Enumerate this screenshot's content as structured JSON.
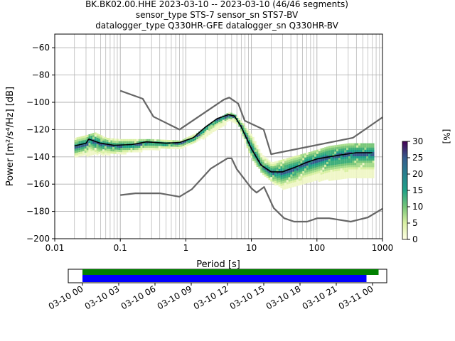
{
  "header": {
    "line1": "BK.BK02.00.HHE   2023-03-10 -- 2023-03-10  (46/46 segments)",
    "line2": "sensor_type STS-7 sensor_sn STS7-BV",
    "line3": "datalogger_type Q330HR-GFE datalogger_sn Q330HR-BV"
  },
  "colors": {
    "nlnm_nhnm": "#666666",
    "mean_curve": "#000000",
    "grid": "#b0b0b0",
    "data_coverage_bar": "#0000ff",
    "gap_coverage_bar": "#008000"
  },
  "chart_data": [
    {
      "type": "heatmap",
      "title": "",
      "xlabel": "Period [s]",
      "ylabel": "Power [m²/s⁴/Hz] [dB]",
      "xscale": "log",
      "xlim": [
        0.01,
        1000
      ],
      "ylim": [
        -200,
        -50
      ],
      "x_ticks": [
        "0.01",
        "0.1",
        "1",
        "10",
        "100",
        "1000"
      ],
      "y_ticks": [
        "−200",
        "−180",
        "−160",
        "−140",
        "−120",
        "−100",
        "−80",
        "−60"
      ],
      "x_tick_values": [
        0.01,
        0.1,
        1,
        10,
        100,
        1000
      ],
      "y_tick_values": [
        -200,
        -180,
        -160,
        -140,
        -120,
        -100,
        -80,
        -60
      ],
      "grid": true,
      "colorbar": {
        "label": "[%]",
        "range": [
          0,
          30
        ],
        "ticks": [
          "0",
          "5",
          "10",
          "15",
          "20",
          "25",
          "30"
        ],
        "tick_values": [
          0,
          5,
          10,
          15,
          20,
          25,
          30
        ]
      },
      "series": [
        {
          "role": "NHNM",
          "points": [
            [
              0.1,
              -91.5
            ],
            [
              0.22,
              -97.4
            ],
            [
              0.32,
              -110.5
            ],
            [
              0.8,
              -120
            ],
            [
              3.8,
              -98
            ],
            [
              4.6,
              -96.5
            ],
            [
              6.3,
              -101
            ],
            [
              7.9,
              -113.5
            ],
            [
              15.4,
              -120
            ],
            [
              20,
              -138
            ],
            [
              354.8,
              -126
            ],
            [
              1000,
              -111
            ]
          ]
        },
        {
          "role": "NLNM",
          "points": [
            [
              0.1,
              -168
            ],
            [
              0.17,
              -166.7
            ],
            [
              0.4,
              -166.7
            ],
            [
              0.8,
              -169.2
            ],
            [
              1.24,
              -163.7
            ],
            [
              2.4,
              -148.6
            ],
            [
              4.3,
              -141.1
            ],
            [
              5,
              -141.1
            ],
            [
              6,
              -149
            ],
            [
              10,
              -163
            ],
            [
              12,
              -166.2
            ],
            [
              15.6,
              -162.1
            ],
            [
              21.9,
              -177.5
            ],
            [
              31.6,
              -185
            ],
            [
              45,
              -187.5
            ],
            [
              70.8,
              -187.5
            ],
            [
              101,
              -185
            ],
            [
              154,
              -185
            ],
            [
              328,
              -187.5
            ],
            [
              600,
              -184.4
            ],
            [
              1000,
              -178
            ]
          ]
        },
        {
          "role": "mean",
          "points": [
            [
              0.02,
              -132
            ],
            [
              0.03,
              -130
            ],
            [
              0.033,
              -127
            ],
            [
              0.05,
              -130
            ],
            [
              0.08,
              -131.5
            ],
            [
              0.15,
              -131
            ],
            [
              0.25,
              -129
            ],
            [
              0.5,
              -130
            ],
            [
              0.8,
              -129.5
            ],
            [
              1.3,
              -126
            ],
            [
              2,
              -118
            ],
            [
              3,
              -112
            ],
            [
              4.5,
              -109
            ],
            [
              5.5,
              -110
            ],
            [
              7,
              -118
            ],
            [
              10,
              -134
            ],
            [
              14,
              -146
            ],
            [
              20,
              -151
            ],
            [
              30,
              -151
            ],
            [
              50,
              -147
            ],
            [
              70,
              -144
            ],
            [
              100,
              -141.5
            ],
            [
              200,
              -139
            ],
            [
              400,
              -137
            ],
            [
              700,
              -137
            ]
          ]
        },
        {
          "role": "psd_band_upper",
          "points": [
            [
              0.02,
              -126
            ],
            [
              0.03,
              -124
            ],
            [
              0.04,
              -122
            ],
            [
              0.06,
              -126
            ],
            [
              0.1,
              -127
            ],
            [
              0.3,
              -127
            ],
            [
              0.8,
              -128
            ],
            [
              1.5,
              -122
            ],
            [
              2.5,
              -114
            ],
            [
              4.5,
              -107
            ],
            [
              6,
              -110
            ],
            [
              10,
              -124
            ],
            [
              14,
              -138
            ],
            [
              20,
              -144
            ],
            [
              40,
              -140
            ],
            [
              80,
              -136
            ],
            [
              150,
              -132
            ],
            [
              300,
              -130
            ],
            [
              700,
              -130
            ]
          ]
        },
        {
          "role": "psd_band_lower",
          "points": [
            [
              0.02,
              -139
            ],
            [
              0.04,
              -138
            ],
            [
              0.1,
              -137
            ],
            [
              0.3,
              -134
            ],
            [
              0.8,
              -133
            ],
            [
              1.5,
              -128
            ],
            [
              3,
              -119
            ],
            [
              4.5,
              -113
            ],
            [
              6,
              -115
            ],
            [
              10,
              -142
            ],
            [
              14,
              -151
            ],
            [
              20,
              -158
            ],
            [
              30,
              -163
            ],
            [
              50,
              -160
            ],
            [
              100,
              -157
            ],
            [
              300,
              -155
            ],
            [
              700,
              -154
            ]
          ]
        }
      ]
    },
    {
      "type": "bar",
      "title": "",
      "xlabel": "",
      "ylabel": "",
      "x_ticks": [
        "03-10 00",
        "03-10 03",
        "03-10 06",
        "03-10 09",
        "03-10 12",
        "03-10 15",
        "03-10 18",
        "03-10 21",
        "03-11 00"
      ],
      "series": [
        {
          "role": "gap_coverage",
          "start": "2023-03-10T00:00",
          "end": "2023-03-11T00:30"
        },
        {
          "role": "data_coverage",
          "start": "2023-03-10T00:00",
          "end": "2023-03-10T23:30"
        }
      ]
    }
  ]
}
